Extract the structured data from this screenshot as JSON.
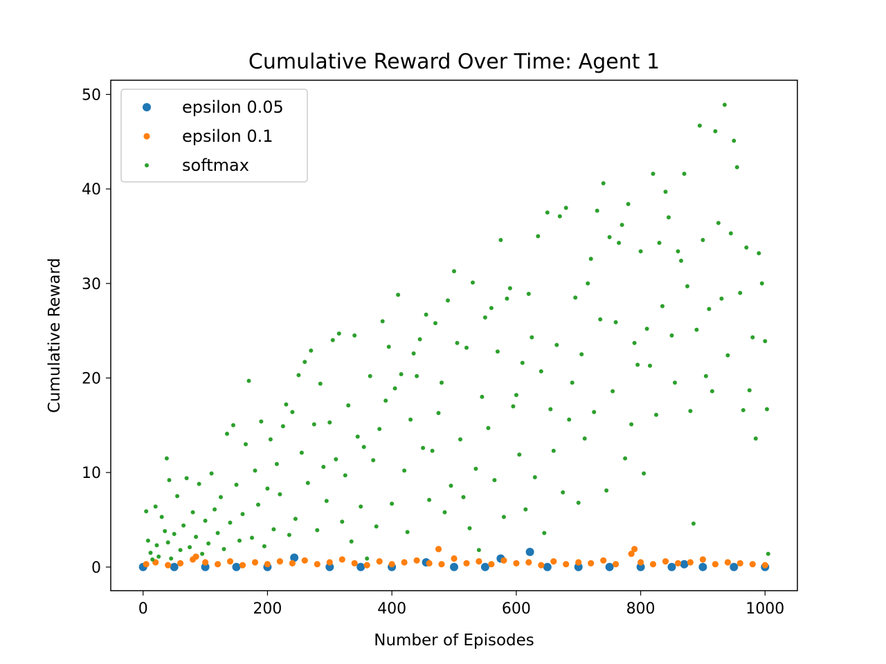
{
  "chart_data": {
    "type": "scatter",
    "title": "Cumulative Reward Over Time: Agent 1",
    "xlabel": "Number of Episodes",
    "ylabel": "Cumulative Reward",
    "xlim": [
      -52,
      1052
    ],
    "ylim": [
      -2.5,
      51.5
    ],
    "xticks": [
      0,
      200,
      400,
      600,
      800,
      1000
    ],
    "yticks": [
      0,
      10,
      20,
      30,
      40,
      50
    ],
    "grid": false,
    "legend_position": "top-left",
    "series": [
      {
        "name": "epsilon 0.05",
        "color": "#1f77b4",
        "marker": "large",
        "points": [
          [
            0,
            0
          ],
          [
            50,
            0
          ],
          [
            100,
            0
          ],
          [
            150,
            0
          ],
          [
            200,
            0
          ],
          [
            243,
            1.0
          ],
          [
            300,
            0
          ],
          [
            350,
            0
          ],
          [
            400,
            0
          ],
          [
            455,
            0.5
          ],
          [
            500,
            0
          ],
          [
            550,
            0
          ],
          [
            575,
            0.9
          ],
          [
            622,
            1.6
          ],
          [
            650,
            0
          ],
          [
            700,
            0
          ],
          [
            750,
            0
          ],
          [
            800,
            0
          ],
          [
            850,
            0
          ],
          [
            870,
            0.3
          ],
          [
            900,
            0
          ],
          [
            950,
            0
          ],
          [
            1000,
            0
          ]
        ]
      },
      {
        "name": "epsilon 0.1",
        "color": "#ff7f0e",
        "marker": "medium",
        "points": [
          [
            5,
            0.3
          ],
          [
            20,
            0.5
          ],
          [
            40,
            0.2
          ],
          [
            60,
            0.4
          ],
          [
            80,
            0.8
          ],
          [
            85,
            1.1
          ],
          [
            100,
            0.5
          ],
          [
            120,
            0.3
          ],
          [
            140,
            0.6
          ],
          [
            160,
            0.2
          ],
          [
            180,
            0.5
          ],
          [
            200,
            0.3
          ],
          [
            220,
            0.6
          ],
          [
            240,
            0.4
          ],
          [
            260,
            0.7
          ],
          [
            280,
            0.3
          ],
          [
            300,
            0.5
          ],
          [
            320,
            0.8
          ],
          [
            340,
            0.4
          ],
          [
            360,
            0.2
          ],
          [
            380,
            0.6
          ],
          [
            400,
            0.3
          ],
          [
            420,
            0.5
          ],
          [
            440,
            0.7
          ],
          [
            460,
            0.4
          ],
          [
            475,
            1.9
          ],
          [
            480,
            0.3
          ],
          [
            500,
            0.9
          ],
          [
            520,
            0.4
          ],
          [
            540,
            0.6
          ],
          [
            560,
            0.3
          ],
          [
            580,
            0.7
          ],
          [
            600,
            0.4
          ],
          [
            620,
            0.5
          ],
          [
            640,
            0.2
          ],
          [
            660,
            0.6
          ],
          [
            680,
            0.3
          ],
          [
            700,
            0.5
          ],
          [
            720,
            0.4
          ],
          [
            740,
            0.7
          ],
          [
            760,
            0.3
          ],
          [
            785,
            1.4
          ],
          [
            790,
            1.9
          ],
          [
            800,
            0.5
          ],
          [
            820,
            0.3
          ],
          [
            840,
            0.6
          ],
          [
            860,
            0.4
          ],
          [
            880,
            0.5
          ],
          [
            900,
            0.8
          ],
          [
            920,
            0.3
          ],
          [
            940,
            0.5
          ],
          [
            960,
            0.4
          ],
          [
            980,
            0.3
          ],
          [
            1000,
            0.2
          ]
        ]
      },
      {
        "name": "softmax",
        "color": "#2ca02c",
        "marker": "small",
        "points": [
          [
            5,
            5.9
          ],
          [
            8,
            2.8
          ],
          [
            12,
            1.5
          ],
          [
            15,
            0.8
          ],
          [
            20,
            6.4
          ],
          [
            22,
            2.3
          ],
          [
            25,
            1.1
          ],
          [
            30,
            5.3
          ],
          [
            35,
            3.8
          ],
          [
            38,
            11.5
          ],
          [
            40,
            2.6
          ],
          [
            42,
            9.2
          ],
          [
            45,
            0.9
          ],
          [
            50,
            3.5
          ],
          [
            55,
            7.5
          ],
          [
            60,
            1.8
          ],
          [
            65,
            4.4
          ],
          [
            70,
            9.4
          ],
          [
            75,
            2.1
          ],
          [
            80,
            5.8
          ],
          [
            85,
            3.2
          ],
          [
            90,
            8.8
          ],
          [
            95,
            1.4
          ],
          [
            100,
            4.9
          ],
          [
            105,
            2.5
          ],
          [
            110,
            9.9
          ],
          [
            115,
            6.1
          ],
          [
            120,
            3.6
          ],
          [
            125,
            7.4
          ],
          [
            130,
            1.9
          ],
          [
            135,
            14.1
          ],
          [
            140,
            4.7
          ],
          [
            145,
            15.0
          ],
          [
            150,
            8.7
          ],
          [
            155,
            2.8
          ],
          [
            160,
            5.6
          ],
          [
            165,
            13.0
          ],
          [
            170,
            19.7
          ],
          [
            175,
            3.1
          ],
          [
            180,
            10.2
          ],
          [
            185,
            6.6
          ],
          [
            190,
            15.4
          ],
          [
            195,
            2.2
          ],
          [
            200,
            8.3
          ],
          [
            205,
            13.5
          ],
          [
            210,
            4.0
          ],
          [
            215,
            10.9
          ],
          [
            220,
            7.7
          ],
          [
            225,
            14.9
          ],
          [
            230,
            17.2
          ],
          [
            235,
            3.4
          ],
          [
            240,
            16.4
          ],
          [
            245,
            5.1
          ],
          [
            250,
            20.3
          ],
          [
            255,
            12.1
          ],
          [
            260,
            21.7
          ],
          [
            265,
            8.9
          ],
          [
            270,
            22.9
          ],
          [
            275,
            15.1
          ],
          [
            280,
            3.9
          ],
          [
            285,
            19.4
          ],
          [
            290,
            10.6
          ],
          [
            295,
            7.0
          ],
          [
            300,
            15.3
          ],
          [
            305,
            24.0
          ],
          [
            310,
            11.4
          ],
          [
            315,
            24.7
          ],
          [
            320,
            4.8
          ],
          [
            325,
            9.7
          ],
          [
            330,
            17.1
          ],
          [
            335,
            2.7
          ],
          [
            340,
            24.5
          ],
          [
            345,
            13.8
          ],
          [
            350,
            6.4
          ],
          [
            355,
            12.7
          ],
          [
            360,
            0.9
          ],
          [
            365,
            20.2
          ],
          [
            370,
            11.3
          ],
          [
            375,
            4.3
          ],
          [
            380,
            14.6
          ],
          [
            385,
            26.0
          ],
          [
            390,
            17.6
          ],
          [
            395,
            23.3
          ],
          [
            400,
            6.7
          ],
          [
            405,
            18.9
          ],
          [
            410,
            28.8
          ],
          [
            415,
            20.4
          ],
          [
            420,
            10.2
          ],
          [
            425,
            3.7
          ],
          [
            430,
            15.6
          ],
          [
            435,
            22.6
          ],
          [
            440,
            20.2
          ],
          [
            445,
            24.1
          ],
          [
            450,
            12.6
          ],
          [
            455,
            26.7
          ],
          [
            460,
            7.1
          ],
          [
            465,
            12.3
          ],
          [
            470,
            25.8
          ],
          [
            475,
            16.3
          ],
          [
            480,
            19.5
          ],
          [
            485,
            5.8
          ],
          [
            490,
            28.2
          ],
          [
            495,
            8.6
          ],
          [
            500,
            31.3
          ],
          [
            505,
            23.7
          ],
          [
            510,
            13.5
          ],
          [
            515,
            7.4
          ],
          [
            520,
            23.2
          ],
          [
            525,
            4.1
          ],
          [
            530,
            30.1
          ],
          [
            535,
            10.4
          ],
          [
            540,
            1.8
          ],
          [
            545,
            18.0
          ],
          [
            550,
            26.4
          ],
          [
            555,
            14.7
          ],
          [
            560,
            27.4
          ],
          [
            565,
            9.2
          ],
          [
            570,
            22.8
          ],
          [
            575,
            34.6
          ],
          [
            580,
            5.3
          ],
          [
            585,
            28.4
          ],
          [
            590,
            29.5
          ],
          [
            595,
            17.0
          ],
          [
            600,
            18.2
          ],
          [
            605,
            11.9
          ],
          [
            610,
            21.6
          ],
          [
            615,
            6.1
          ],
          [
            620,
            28.9
          ],
          [
            625,
            24.3
          ],
          [
            630,
            9.5
          ],
          [
            635,
            35.0
          ],
          [
            640,
            20.7
          ],
          [
            645,
            3.6
          ],
          [
            650,
            37.5
          ],
          [
            655,
            16.7
          ],
          [
            660,
            12.3
          ],
          [
            665,
            23.5
          ],
          [
            670,
            37.1
          ],
          [
            675,
            7.9
          ],
          [
            680,
            38.0
          ],
          [
            685,
            15.6
          ],
          [
            690,
            19.5
          ],
          [
            695,
            28.5
          ],
          [
            700,
            6.8
          ],
          [
            705,
            22.5
          ],
          [
            710,
            13.6
          ],
          [
            715,
            30.0
          ],
          [
            720,
            32.6
          ],
          [
            725,
            16.4
          ],
          [
            730,
            37.7
          ],
          [
            735,
            26.2
          ],
          [
            740,
            40.6
          ],
          [
            745,
            8.1
          ],
          [
            750,
            34.9
          ],
          [
            755,
            18.6
          ],
          [
            760,
            25.9
          ],
          [
            765,
            34.3
          ],
          [
            770,
            36.2
          ],
          [
            775,
            11.5
          ],
          [
            780,
            38.4
          ],
          [
            785,
            15.1
          ],
          [
            790,
            23.7
          ],
          [
            795,
            21.4
          ],
          [
            800,
            33.4
          ],
          [
            805,
            9.9
          ],
          [
            810,
            25.2
          ],
          [
            815,
            21.3
          ],
          [
            820,
            41.6
          ],
          [
            825,
            16.1
          ],
          [
            830,
            34.3
          ],
          [
            835,
            27.6
          ],
          [
            840,
            39.7
          ],
          [
            845,
            37.0
          ],
          [
            850,
            24.5
          ],
          [
            855,
            19.5
          ],
          [
            860,
            33.4
          ],
          [
            865,
            32.4
          ],
          [
            870,
            41.6
          ],
          [
            875,
            29.7
          ],
          [
            880,
            16.5
          ],
          [
            885,
            4.6
          ],
          [
            890,
            25.1
          ],
          [
            895,
            46.7
          ],
          [
            900,
            34.6
          ],
          [
            905,
            20.2
          ],
          [
            910,
            27.3
          ],
          [
            915,
            18.6
          ],
          [
            920,
            46.1
          ],
          [
            925,
            36.4
          ],
          [
            930,
            28.4
          ],
          [
            935,
            48.9
          ],
          [
            940,
            22.4
          ],
          [
            945,
            35.3
          ],
          [
            950,
            45.1
          ],
          [
            955,
            42.3
          ],
          [
            960,
            29.0
          ],
          [
            965,
            16.6
          ],
          [
            970,
            33.8
          ],
          [
            975,
            18.7
          ],
          [
            980,
            24.3
          ],
          [
            985,
            13.6
          ],
          [
            990,
            33.2
          ],
          [
            995,
            30.0
          ],
          [
            1000,
            23.9
          ],
          [
            1003,
            16.7
          ],
          [
            1005,
            1.4
          ]
        ]
      }
    ]
  }
}
